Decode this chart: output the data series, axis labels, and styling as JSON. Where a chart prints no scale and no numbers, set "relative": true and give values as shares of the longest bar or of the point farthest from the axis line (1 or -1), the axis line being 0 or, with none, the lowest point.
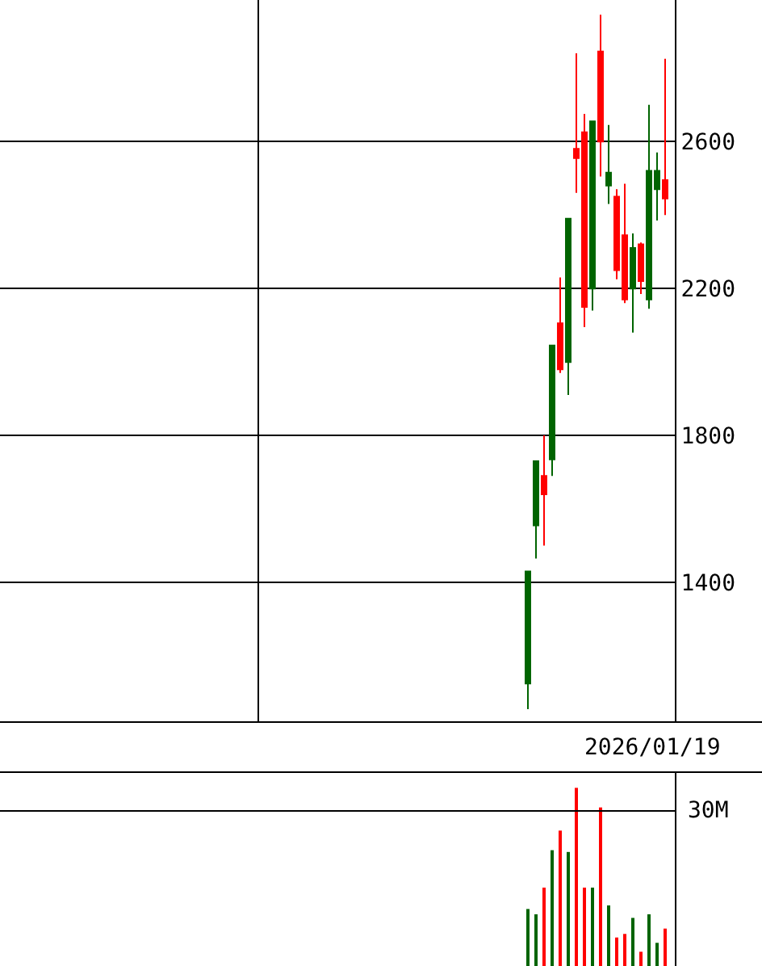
{
  "chart_data": [
    {
      "type": "candlestick",
      "categories": [
        null,
        null,
        null,
        null,
        null,
        null,
        null,
        null,
        null,
        null,
        null,
        null,
        null,
        null,
        null,
        null,
        null,
        null
      ],
      "ohlc": [
        [
          1125,
          1430,
          1055,
          1430
        ],
        [
          1555,
          1730,
          1465,
          1730
        ],
        [
          1690,
          1800,
          1500,
          1640
        ],
        [
          1735,
          2045,
          1690,
          2045
        ],
        [
          2105,
          2230,
          1970,
          1980
        ],
        [
          2000,
          2390,
          1910,
          2390
        ],
        [
          2580,
          2840,
          2460,
          2555
        ],
        [
          2625,
          2675,
          2095,
          2150
        ],
        [
          2200,
          2655,
          2140,
          2655
        ],
        [
          2845,
          2945,
          2505,
          2600
        ],
        [
          2480,
          2645,
          2430,
          2515
        ],
        [
          2450,
          2470,
          2225,
          2250
        ],
        [
          2345,
          2485,
          2160,
          2170
        ],
        [
          2200,
          2350,
          2080,
          2310
        ],
        [
          2320,
          2325,
          2185,
          2220
        ],
        [
          2170,
          2700,
          2145,
          2520
        ],
        [
          2470,
          2570,
          2385,
          2520
        ],
        [
          2495,
          2825,
          2400,
          2445
        ]
      ],
      "colors": [
        "#006400",
        "#006400",
        "#ff0000",
        "#006400",
        "#ff0000",
        "#006400",
        "#ff0000",
        "#ff0000",
        "#006400",
        "#ff0000",
        "#006400",
        "#ff0000",
        "#ff0000",
        "#006400",
        "#ff0000",
        "#006400",
        "#006400",
        "#ff0000"
      ],
      "ylim": [
        1020,
        2985
      ],
      "yticks": [
        1400,
        1800,
        2200,
        2600
      ],
      "grid": "y",
      "tick_labels": "y",
      "annotations": [
        "2026/01/19"
      ]
    },
    {
      "type": "bar",
      "relative": true,
      "categories": [
        null,
        null,
        null,
        null,
        null,
        null,
        null,
        null,
        null,
        null,
        null,
        null,
        null,
        null,
        null,
        null,
        null,
        null
      ],
      "values": [
        0.32,
        0.29,
        0.44,
        0.65,
        0.76,
        0.64,
        1,
        0.44,
        0.44,
        0.89,
        0.34,
        0.16,
        0.18,
        0.27,
        0.08,
        0.29,
        0.13,
        0.21
      ],
      "colors": [
        "#006400",
        "#006400",
        "#ff0000",
        "#006400",
        "#ff0000",
        "#006400",
        "#ff0000",
        "#ff0000",
        "#006400",
        "#ff0000",
        "#006400",
        "#ff0000",
        "#ff0000",
        "#006400",
        "#ff0000",
        "#006400",
        "#006400",
        "#ff0000"
      ],
      "ref_lines": [
        {
          "axis": "y",
          "value": 0.87,
          "label": "30M"
        }
      ],
      "tick_labels": false
    }
  ]
}
